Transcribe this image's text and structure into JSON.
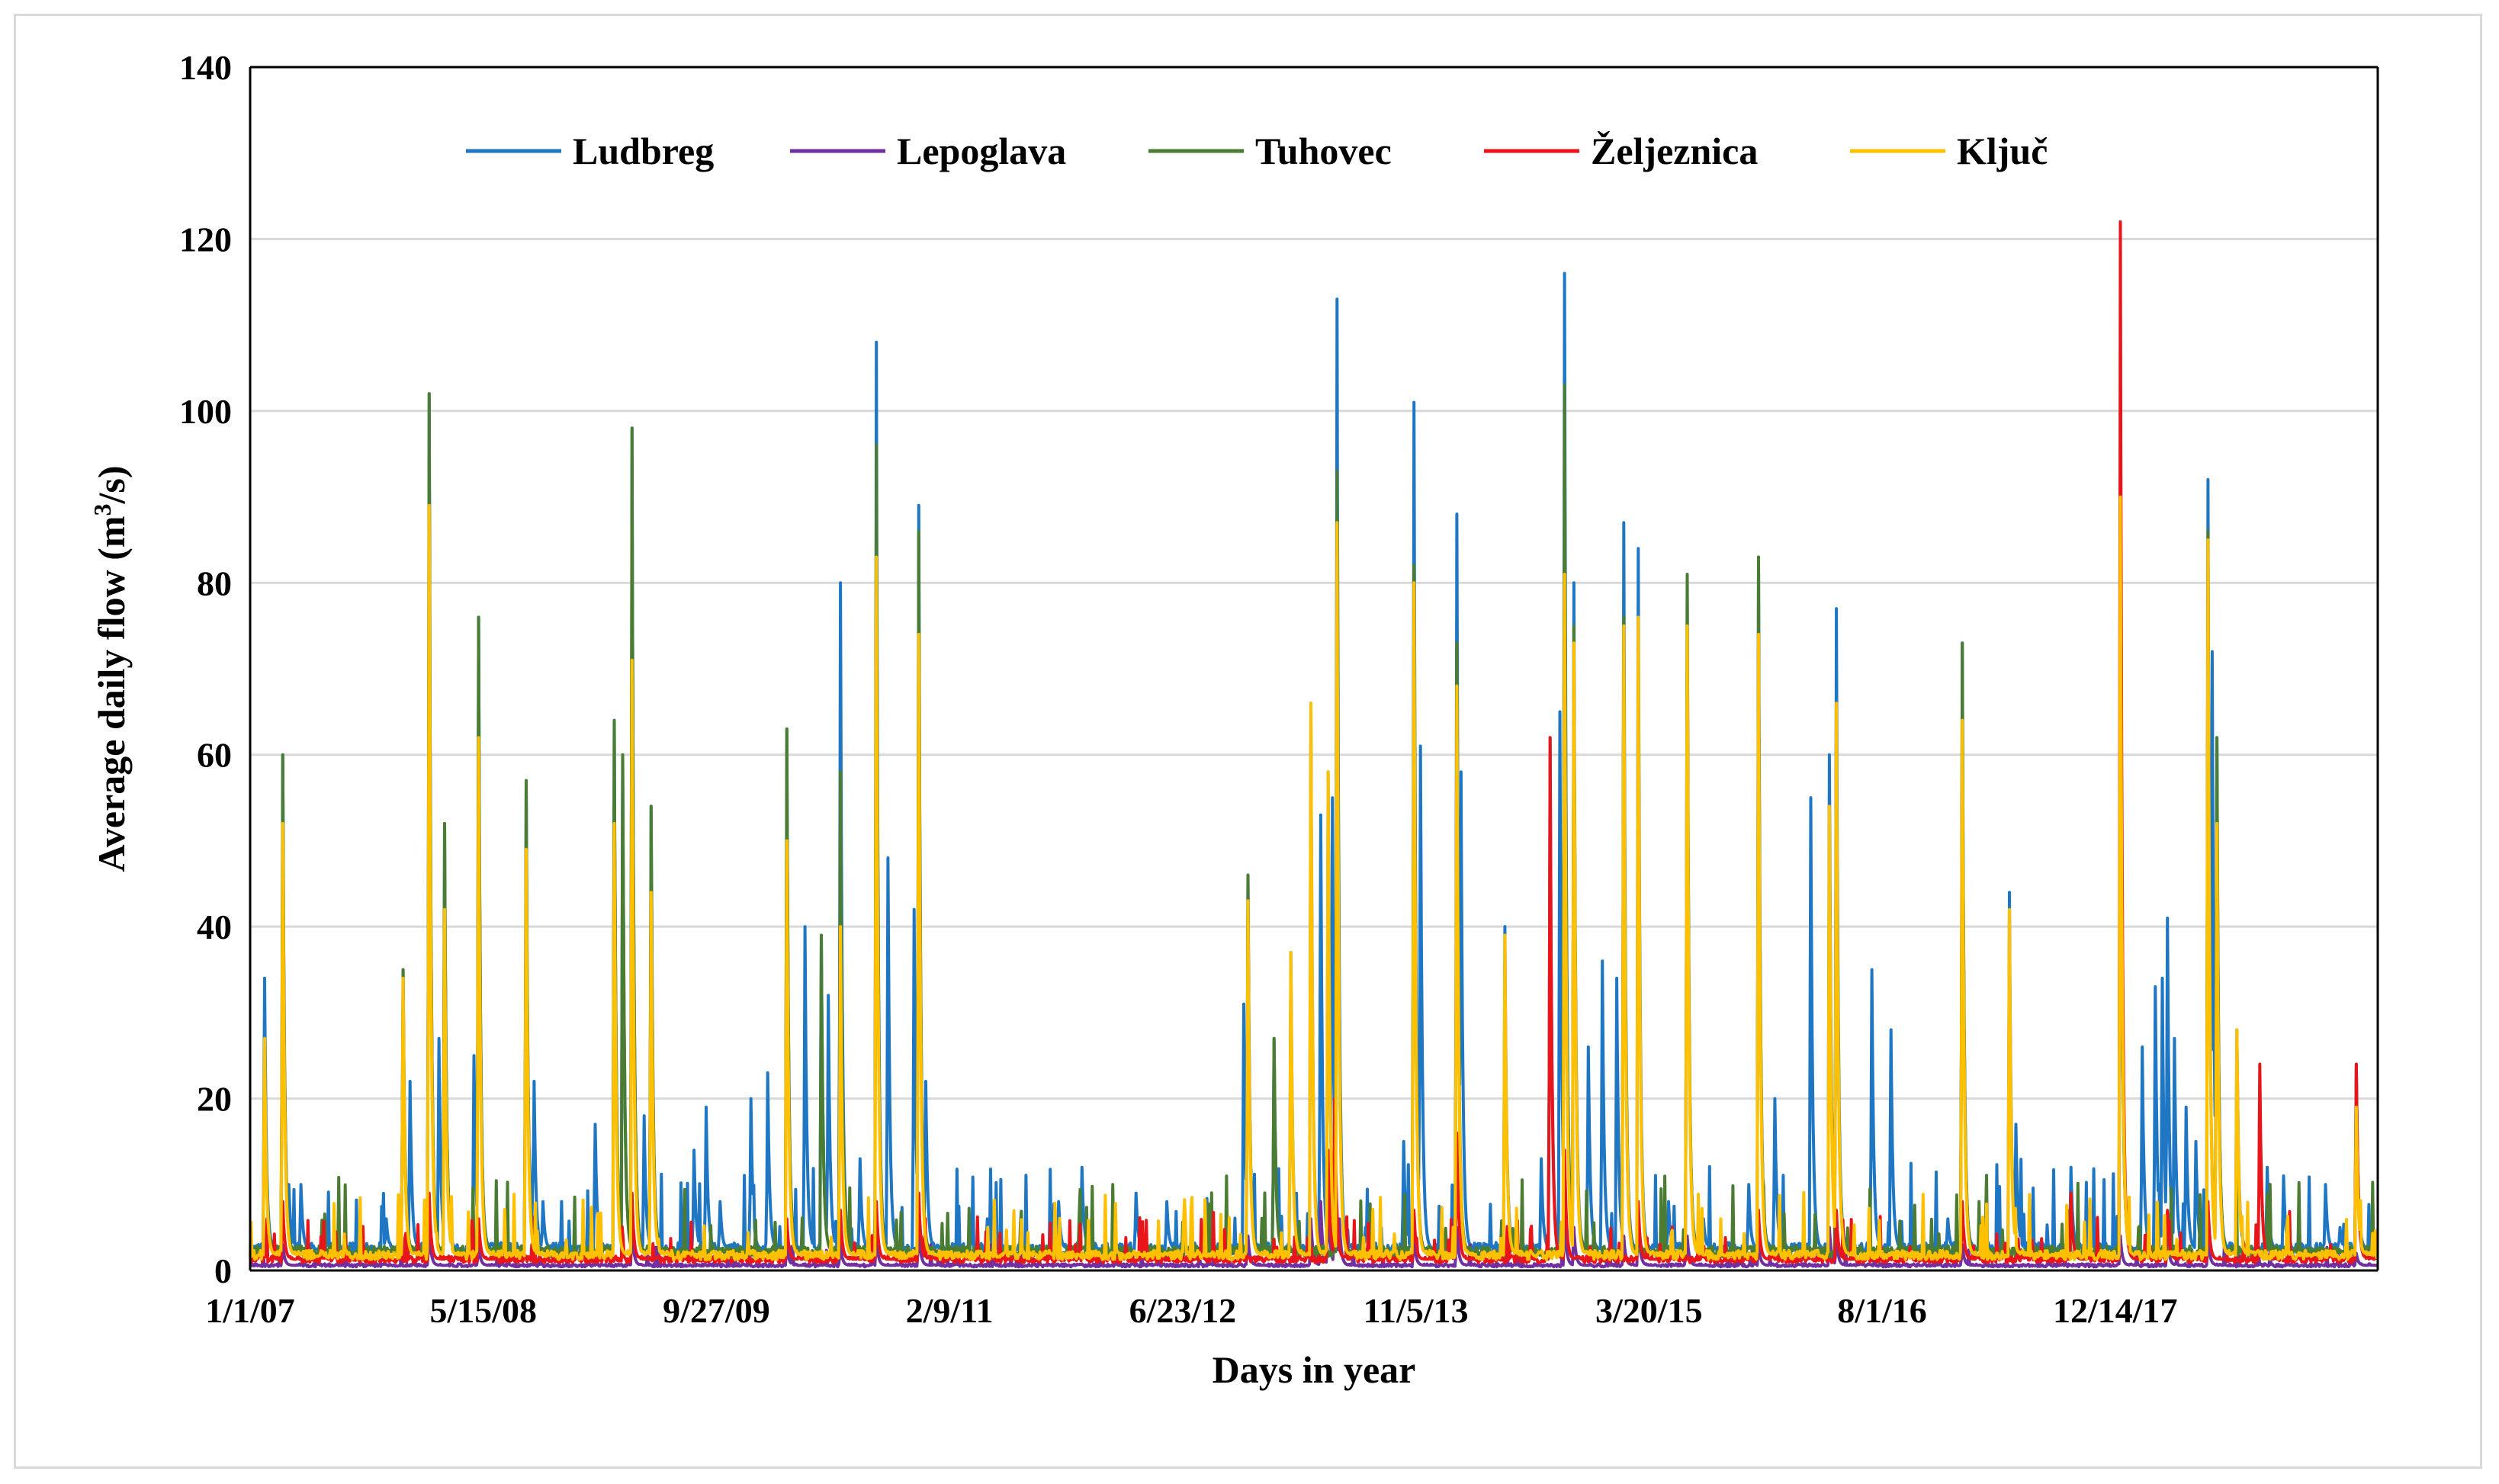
{
  "chart_data": {
    "type": "line",
    "title": "",
    "xlabel": "Days in year",
    "ylabel": {
      "prefix": "Average daily flow (m",
      "sup": "3",
      "suffix": "/s)"
    },
    "ylim": [
      0,
      140
    ],
    "yticks": [
      0,
      20,
      40,
      60,
      80,
      100,
      120,
      140
    ],
    "xlim": [
      "2007-01-01",
      "2019-06-30"
    ],
    "xtick_labels": [
      "1/1/07",
      "5/15/08",
      "9/27/09",
      "2/9/11",
      "6/23/12",
      "11/5/13",
      "3/20/15",
      "8/1/16",
      "12/14/17"
    ],
    "xtick_dates": [
      "2007-01-01",
      "2008-05-15",
      "2009-09-27",
      "2011-02-09",
      "2012-06-23",
      "2013-11-05",
      "2015-03-20",
      "2016-08-01",
      "2017-12-14"
    ],
    "grid": "horizontal",
    "legend_position": "top",
    "series": [
      {
        "name": "Ludbreg",
        "color": "#1f77c4",
        "baseline": 2.5,
        "peaks": [
          [
            "2007-02-01",
            34
          ],
          [
            "2007-03-12",
            60
          ],
          [
            "2007-03-25",
            10
          ],
          [
            "2007-04-20",
            10
          ],
          [
            "2007-10-20",
            6
          ],
          [
            "2007-11-25",
            35
          ],
          [
            "2007-12-10",
            22
          ],
          [
            "2008-01-20",
            102
          ],
          [
            "2008-02-10",
            27
          ],
          [
            "2008-02-22",
            52
          ],
          [
            "2008-04-25",
            25
          ],
          [
            "2008-05-05",
            76
          ],
          [
            "2008-08-15",
            57
          ],
          [
            "2008-09-01",
            22
          ],
          [
            "2008-09-20",
            8
          ],
          [
            "2009-01-10",
            17
          ],
          [
            "2009-02-20",
            64
          ],
          [
            "2009-03-10",
            60
          ],
          [
            "2009-03-30",
            98
          ],
          [
            "2009-04-25",
            18
          ],
          [
            "2009-05-10",
            54
          ],
          [
            "2009-08-10",
            14
          ],
          [
            "2009-09-05",
            19
          ],
          [
            "2009-10-05",
            8
          ],
          [
            "2009-12-10",
            20
          ],
          [
            "2010-01-15",
            23
          ],
          [
            "2010-02-25",
            63
          ],
          [
            "2010-04-05",
            40
          ],
          [
            "2010-05-10",
            39
          ],
          [
            "2010-05-25",
            32
          ],
          [
            "2010-06-20",
            80
          ],
          [
            "2010-08-01",
            13
          ],
          [
            "2010-09-05",
            108
          ],
          [
            "2010-09-30",
            48
          ],
          [
            "2010-11-25",
            42
          ],
          [
            "2010-12-05",
            89
          ],
          [
            "2010-12-20",
            22
          ],
          [
            "2011-05-01",
            6
          ],
          [
            "2011-10-01",
            8
          ],
          [
            "2011-11-20",
            12
          ],
          [
            "2012-03-15",
            9
          ],
          [
            "2012-05-20",
            8
          ],
          [
            "2012-11-01",
            31
          ],
          [
            "2012-11-10",
            46
          ],
          [
            "2013-01-05",
            27
          ],
          [
            "2013-02-10",
            37
          ],
          [
            "2013-03-25",
            66
          ],
          [
            "2013-04-15",
            53
          ],
          [
            "2013-05-01",
            58
          ],
          [
            "2013-05-10",
            55
          ],
          [
            "2013-05-20",
            113
          ],
          [
            "2013-07-20",
            5
          ],
          [
            "2013-10-10",
            15
          ],
          [
            "2013-11-01",
            101
          ],
          [
            "2013-11-15",
            61
          ],
          [
            "2014-02-01",
            88
          ],
          [
            "2014-02-10",
            58
          ],
          [
            "2014-05-15",
            40
          ],
          [
            "2014-08-01",
            13
          ],
          [
            "2014-08-20",
            62
          ],
          [
            "2014-09-10",
            65
          ],
          [
            "2014-09-20",
            116
          ],
          [
            "2014-10-10",
            80
          ],
          [
            "2014-11-10",
            26
          ],
          [
            "2014-12-10",
            36
          ],
          [
            "2015-01-10",
            34
          ],
          [
            "2015-01-25",
            87
          ],
          [
            "2015-02-25",
            84
          ],
          [
            "2015-05-01",
            8
          ],
          [
            "2015-06-10",
            80
          ],
          [
            "2015-07-15",
            6
          ],
          [
            "2015-10-20",
            10
          ],
          [
            "2015-11-10",
            83
          ],
          [
            "2015-12-15",
            20
          ],
          [
            "2016-03-01",
            55
          ],
          [
            "2016-04-10",
            60
          ],
          [
            "2016-04-25",
            77
          ],
          [
            "2016-07-10",
            35
          ],
          [
            "2016-08-20",
            28
          ],
          [
            "2016-10-10",
            3
          ],
          [
            "2016-12-20",
            6
          ],
          [
            "2017-01-20",
            73
          ],
          [
            "2017-05-01",
            44
          ],
          [
            "2017-05-15",
            17
          ],
          [
            "2017-09-10",
            12
          ],
          [
            "2017-11-05",
            4
          ],
          [
            "2017-12-25",
            80
          ],
          [
            "2018-02-10",
            26
          ],
          [
            "2018-03-10",
            33
          ],
          [
            "2018-03-25",
            34
          ],
          [
            "2018-04-05",
            41
          ],
          [
            "2018-04-20",
            27
          ],
          [
            "2018-05-15",
            19
          ],
          [
            "2018-06-05",
            15
          ],
          [
            "2018-07-01",
            92
          ],
          [
            "2018-07-10",
            72
          ],
          [
            "2018-07-20",
            62
          ],
          [
            "2018-09-01",
            28
          ],
          [
            "2018-11-05",
            12
          ],
          [
            "2018-12-10",
            11
          ],
          [
            "2019-03-10",
            10
          ],
          [
            "2019-04-10",
            5
          ],
          [
            "2019-05-15",
            24
          ]
        ]
      },
      {
        "name": "Lepoglava",
        "color": "#7030a0",
        "baseline": 0.6,
        "peaks": [
          [
            "2007-03-12",
            3
          ],
          [
            "2008-01-20",
            5
          ],
          [
            "2008-05-05",
            3
          ],
          [
            "2009-03-30",
            5
          ],
          [
            "2010-02-25",
            3
          ],
          [
            "2010-06-20",
            3
          ],
          [
            "2010-09-05",
            4
          ],
          [
            "2010-12-05",
            5
          ],
          [
            "2012-11-10",
            4
          ],
          [
            "2013-03-25",
            6
          ],
          [
            "2013-04-15",
            8
          ],
          [
            "2013-05-01",
            9
          ],
          [
            "2013-05-15",
            10
          ],
          [
            "2013-05-25",
            6
          ],
          [
            "2013-11-01",
            4
          ],
          [
            "2014-02-01",
            5
          ],
          [
            "2014-09-20",
            6
          ],
          [
            "2014-10-10",
            5
          ],
          [
            "2015-01-25",
            4
          ],
          [
            "2015-02-25",
            6
          ],
          [
            "2015-06-10",
            4
          ],
          [
            "2015-11-10",
            3
          ],
          [
            "2016-04-10",
            5
          ],
          [
            "2016-04-25",
            4
          ],
          [
            "2017-01-20",
            3
          ],
          [
            "2017-12-25",
            4
          ],
          [
            "2018-04-05",
            4
          ],
          [
            "2018-07-01",
            4
          ],
          [
            "2019-05-15",
            2
          ]
        ]
      },
      {
        "name": "Tuhovec",
        "color": "#4a7d33",
        "baseline": 2.2,
        "peaks": [
          [
            "2007-02-01",
            27
          ],
          [
            "2007-03-12",
            60
          ],
          [
            "2007-11-25",
            35
          ],
          [
            "2008-01-20",
            102
          ],
          [
            "2008-02-22",
            52
          ],
          [
            "2008-05-05",
            76
          ],
          [
            "2008-08-15",
            57
          ],
          [
            "2009-02-20",
            64
          ],
          [
            "2009-03-10",
            60
          ],
          [
            "2009-03-30",
            98
          ],
          [
            "2009-05-10",
            54
          ],
          [
            "2010-02-25",
            63
          ],
          [
            "2010-05-10",
            39
          ],
          [
            "2010-06-20",
            58
          ],
          [
            "2010-09-05",
            96
          ],
          [
            "2010-12-05",
            86
          ],
          [
            "2012-11-10",
            46
          ],
          [
            "2013-01-05",
            27
          ],
          [
            "2013-05-20",
            93
          ],
          [
            "2013-11-01",
            82
          ],
          [
            "2014-02-01",
            73
          ],
          [
            "2014-09-20",
            103
          ],
          [
            "2014-10-10",
            75
          ],
          [
            "2015-01-25",
            76
          ],
          [
            "2015-06-10",
            81
          ],
          [
            "2015-11-10",
            83
          ],
          [
            "2016-04-25",
            66
          ],
          [
            "2017-01-20",
            73
          ],
          [
            "2017-12-25",
            83
          ],
          [
            "2018-07-01",
            86
          ],
          [
            "2018-07-20",
            62
          ],
          [
            "2019-05-15",
            24
          ]
        ]
      },
      {
        "name": "Željeznica",
        "color": "#e8161b",
        "baseline": 1.3,
        "peaks": [
          [
            "2007-03-12",
            8
          ],
          [
            "2008-01-20",
            9
          ],
          [
            "2008-05-05",
            6
          ],
          [
            "2009-03-30",
            9
          ],
          [
            "2010-02-25",
            6
          ],
          [
            "2010-06-20",
            7
          ],
          [
            "2010-09-05",
            8
          ],
          [
            "2010-12-05",
            9
          ],
          [
            "2013-05-01",
            14
          ],
          [
            "2013-05-15",
            20
          ],
          [
            "2013-11-01",
            7
          ],
          [
            "2014-02-01",
            16
          ],
          [
            "2014-08-20",
            62
          ],
          [
            "2014-09-20",
            14
          ],
          [
            "2015-02-25",
            8
          ],
          [
            "2015-11-10",
            7
          ],
          [
            "2016-04-25",
            7
          ],
          [
            "2017-01-20",
            8
          ],
          [
            "2017-09-10",
            9
          ],
          [
            "2017-12-25",
            122
          ],
          [
            "2018-04-05",
            7
          ],
          [
            "2018-07-01",
            8
          ],
          [
            "2018-10-20",
            24
          ],
          [
            "2019-05-15",
            24
          ]
        ]
      },
      {
        "name": "Ključ",
        "color": "#ffc000",
        "baseline": 1.8,
        "peaks": [
          [
            "2007-02-01",
            27
          ],
          [
            "2007-03-12",
            52
          ],
          [
            "2007-11-25",
            34
          ],
          [
            "2008-01-20",
            89
          ],
          [
            "2008-02-22",
            42
          ],
          [
            "2008-05-05",
            62
          ],
          [
            "2008-08-15",
            49
          ],
          [
            "2009-02-20",
            52
          ],
          [
            "2009-03-30",
            71
          ],
          [
            "2009-05-10",
            44
          ],
          [
            "2010-02-25",
            50
          ],
          [
            "2010-06-20",
            40
          ],
          [
            "2010-09-05",
            83
          ],
          [
            "2010-12-05",
            74
          ],
          [
            "2012-11-10",
            43
          ],
          [
            "2013-02-10",
            37
          ],
          [
            "2013-03-25",
            66
          ],
          [
            "2013-05-01",
            58
          ],
          [
            "2013-05-20",
            87
          ],
          [
            "2013-11-01",
            80
          ],
          [
            "2014-02-01",
            68
          ],
          [
            "2014-05-15",
            39
          ],
          [
            "2014-09-20",
            81
          ],
          [
            "2014-10-10",
            73
          ],
          [
            "2015-01-25",
            75
          ],
          [
            "2015-02-25",
            76
          ],
          [
            "2015-06-10",
            75
          ],
          [
            "2015-11-10",
            74
          ],
          [
            "2016-04-10",
            54
          ],
          [
            "2016-04-25",
            66
          ],
          [
            "2017-01-20",
            64
          ],
          [
            "2017-05-01",
            42
          ],
          [
            "2017-12-25",
            90
          ],
          [
            "2018-07-01",
            85
          ],
          [
            "2018-07-20",
            52
          ],
          [
            "2018-09-01",
            28
          ],
          [
            "2019-05-15",
            19
          ]
        ]
      }
    ]
  }
}
